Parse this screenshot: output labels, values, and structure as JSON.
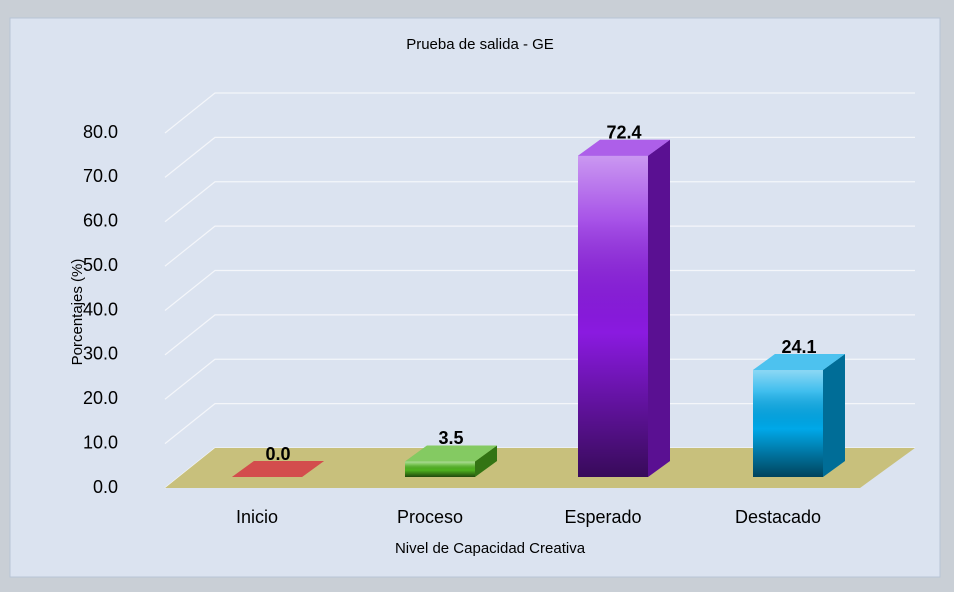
{
  "chart_data": {
    "type": "bar3d",
    "title": "Prueba de salida - GE",
    "x_label": "Nivel de Capacidad Creativa",
    "y_label": "Porcentajes (%)",
    "categories": [
      "Inicio",
      "Proceso",
      "Esperado",
      "Destacado"
    ],
    "values": [
      0,
      3.5,
      72.4,
      24.1
    ],
    "value_labels": [
      "0.0",
      "3.5",
      "72.4",
      "24.1"
    ],
    "colors": [
      "#c00000",
      "#4fb31f",
      "#8a1ae0",
      "#00a8e8"
    ],
    "ylim": [
      0,
      80
    ],
    "yticks": [
      {
        "value": 0,
        "label": "0.0"
      },
      {
        "value": 10,
        "label": "10.0"
      },
      {
        "value": 20,
        "label": "20.0"
      },
      {
        "value": 30,
        "label": "30.0"
      },
      {
        "value": 40,
        "label": "40.0"
      },
      {
        "value": 50,
        "label": "50.0"
      },
      {
        "value": 60,
        "label": "60.0"
      },
      {
        "value": 70,
        "label": "70.0"
      },
      {
        "value": 80,
        "label": "80.0"
      }
    ],
    "grid": true
  }
}
